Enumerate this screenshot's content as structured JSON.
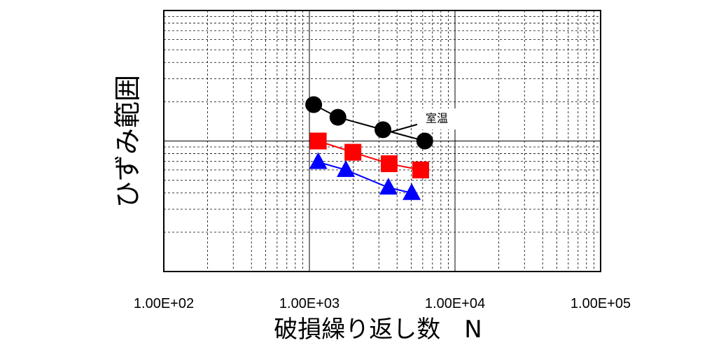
{
  "chart_data": {
    "type": "scatter",
    "x_label": "破損繰り返し数　N",
    "y_label": "ひずみ範囲",
    "annotations": [
      {
        "text": "室温"
      }
    ],
    "log_x": true,
    "log_y": true,
    "grid": true,
    "xlim": [
      100,
      100000
    ],
    "xticks": [
      {
        "value": 100,
        "label": "1.00E+02"
      },
      {
        "value": 1000,
        "label": "1.00E+03"
      },
      {
        "value": 10000,
        "label": "1.00E+04"
      },
      {
        "value": 100000,
        "label": "1.00E+05"
      }
    ],
    "ylim": [
      0.1,
      10
    ],
    "yticks": [
      0.1,
      1,
      10
    ],
    "series": [
      {
        "color": "#000000",
        "marker": "circle",
        "x": [
          1070,
          1570,
          3200,
          6200
        ],
        "values": [
          1.9,
          1.52,
          1.22,
          1.0
        ]
      },
      {
        "color": "#ff0000",
        "marker": "square",
        "x": [
          1150,
          1990,
          3530,
          5810
        ],
        "values": [
          1.0,
          0.82,
          0.67,
          0.6
        ]
      },
      {
        "color": "#0000ff",
        "marker": "triangle",
        "x": [
          1150,
          1780,
          3490,
          5040
        ],
        "values": [
          0.69,
          0.6,
          0.44,
          0.4
        ]
      }
    ]
  }
}
